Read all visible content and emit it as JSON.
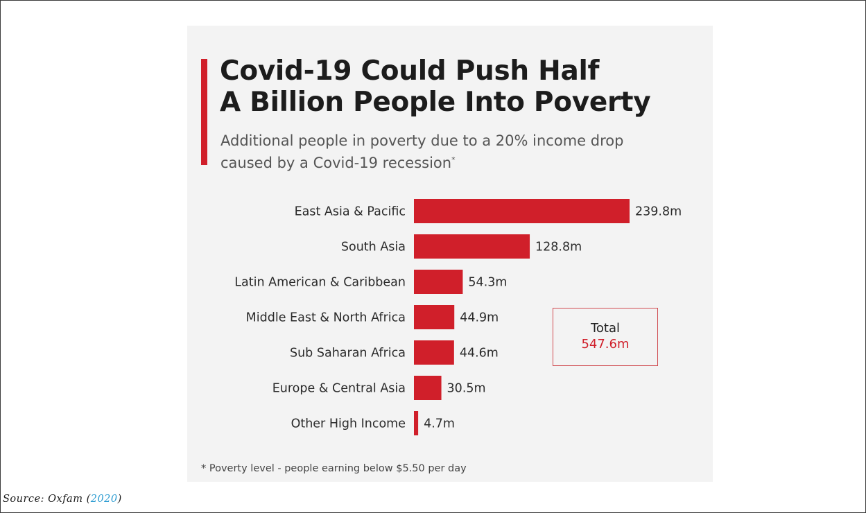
{
  "chart_data": {
    "type": "bar",
    "orientation": "horizontal",
    "title": "Covid-19 Could Push Half A Billion People Into Poverty",
    "subtitle": "Additional people in poverty due to a 20% income drop caused by a Covid-19 recession",
    "subtitle_marker": "*",
    "categories": [
      "East Asia & Pacific",
      "South Asia",
      "Latin American & Caribbean",
      "Middle East & North Africa",
      "Sub Saharan Africa",
      "Europe & Central Asia",
      "Other High Income"
    ],
    "values": [
      239.8,
      128.8,
      54.3,
      44.9,
      44.6,
      30.5,
      4.7
    ],
    "value_labels": [
      "239.8m",
      "128.8m",
      "54.3m",
      "44.9m",
      "44.6m",
      "30.5m",
      "4.7m"
    ],
    "unit": "m",
    "xlim": [
      0,
      239.8
    ],
    "grid": false,
    "legend": "none",
    "bar_color": "#d01f2a",
    "annotation": {
      "label": "Total",
      "value": "547.6m",
      "value_color": "#d01f2a"
    },
    "footnote": "* Poverty level - people earning below $5.50 per day"
  },
  "source": {
    "prefix": "Source: Oxfam (",
    "year": "2020",
    "suffix": ")"
  }
}
